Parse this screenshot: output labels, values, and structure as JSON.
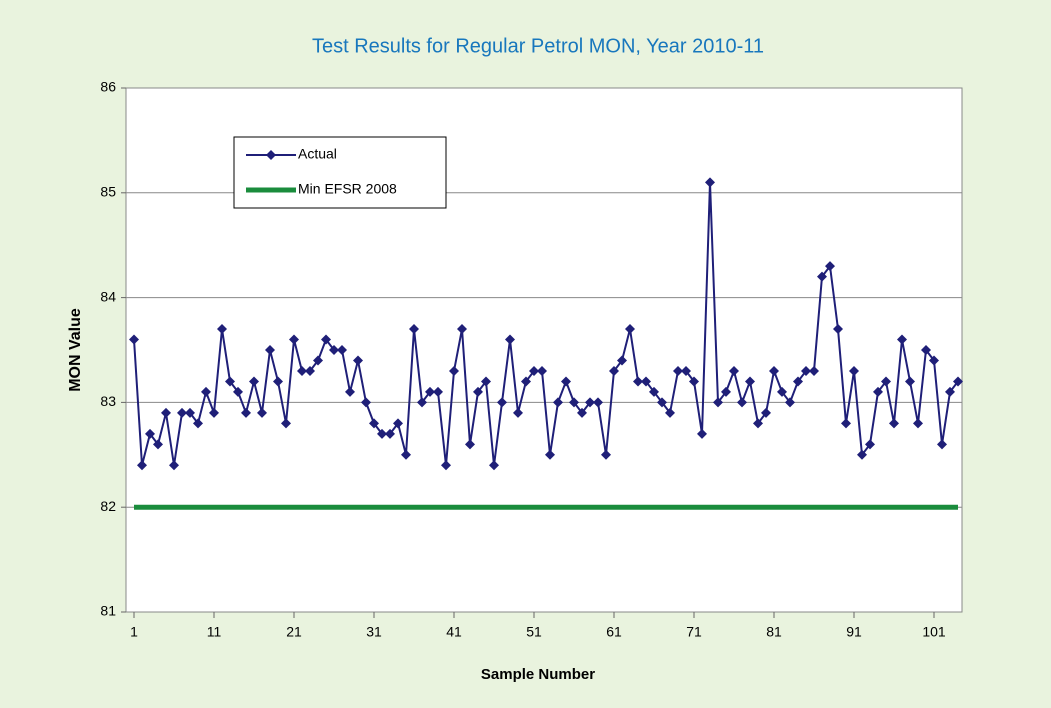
{
  "chart_data": {
    "type": "line",
    "title": "Test Results for Regular Petrol MON, Year 2010-11",
    "x_label": "Sample Number",
    "y_label": "MON Value",
    "x": [
      1,
      2,
      3,
      4,
      5,
      6,
      7,
      8,
      9,
      10,
      11,
      12,
      13,
      14,
      15,
      16,
      17,
      18,
      19,
      20,
      21,
      22,
      23,
      24,
      25,
      26,
      27,
      28,
      29,
      30,
      31,
      32,
      33,
      34,
      35,
      36,
      37,
      38,
      39,
      40,
      41,
      42,
      43,
      44,
      45,
      46,
      47,
      48,
      49,
      50,
      51,
      52,
      53,
      54,
      55,
      56,
      57,
      58,
      59,
      60,
      61,
      62,
      63,
      64,
      65,
      66,
      67,
      68,
      69,
      70,
      71,
      72,
      73,
      74,
      75,
      76,
      77,
      78,
      79,
      80,
      81,
      82,
      83,
      84,
      85,
      86,
      87,
      88,
      89,
      90,
      91,
      92,
      93,
      94,
      95,
      96,
      97,
      98,
      99,
      100,
      101,
      102,
      103,
      104
    ],
    "series": [
      {
        "name": "Actual",
        "color": "#1f1f78",
        "marker": "diamond",
        "values": [
          83.6,
          82.4,
          82.7,
          82.6,
          82.9,
          82.4,
          82.9,
          82.9,
          82.8,
          83.1,
          82.9,
          83.7,
          83.2,
          83.1,
          82.9,
          83.2,
          82.9,
          83.5,
          83.2,
          82.8,
          83.6,
          83.3,
          83.3,
          83.4,
          83.6,
          83.5,
          83.5,
          83.1,
          83.4,
          83.0,
          82.8,
          82.7,
          82.7,
          82.8,
          82.5,
          83.7,
          83.0,
          83.1,
          83.1,
          82.4,
          83.3,
          83.7,
          82.6,
          83.1,
          83.2,
          82.4,
          83.0,
          83.6,
          82.9,
          83.2,
          83.3,
          83.3,
          82.5,
          83.0,
          83.2,
          83.0,
          82.9,
          83.0,
          83.0,
          82.5,
          83.3,
          83.4,
          83.7,
          83.2,
          83.2,
          83.1,
          83.0,
          82.9,
          83.3,
          83.3,
          83.2,
          82.7,
          85.1,
          83.0,
          83.1,
          83.3,
          83.0,
          83.2,
          82.8,
          82.9,
          83.3,
          83.1,
          83.0,
          83.2,
          83.3,
          83.3,
          84.2,
          84.3,
          83.7,
          82.8,
          83.3,
          82.5,
          82.6,
          83.1,
          83.2,
          82.8,
          83.6,
          83.2,
          82.8,
          83.5,
          83.4,
          82.6,
          83.1,
          83.2
        ]
      },
      {
        "name": "Min EFSR 2008",
        "color": "#1a8c3c",
        "x": [
          1,
          104
        ],
        "values": [
          82,
          82
        ]
      }
    ],
    "xlim": [
      1,
      104
    ],
    "xticks": [
      1,
      11,
      21,
      31,
      41,
      51,
      61,
      71,
      81,
      91,
      101
    ],
    "ylim": [
      81,
      86
    ],
    "yticks": [
      81,
      82,
      83,
      84,
      85,
      86
    ],
    "grid": true,
    "legend": "upper left"
  }
}
